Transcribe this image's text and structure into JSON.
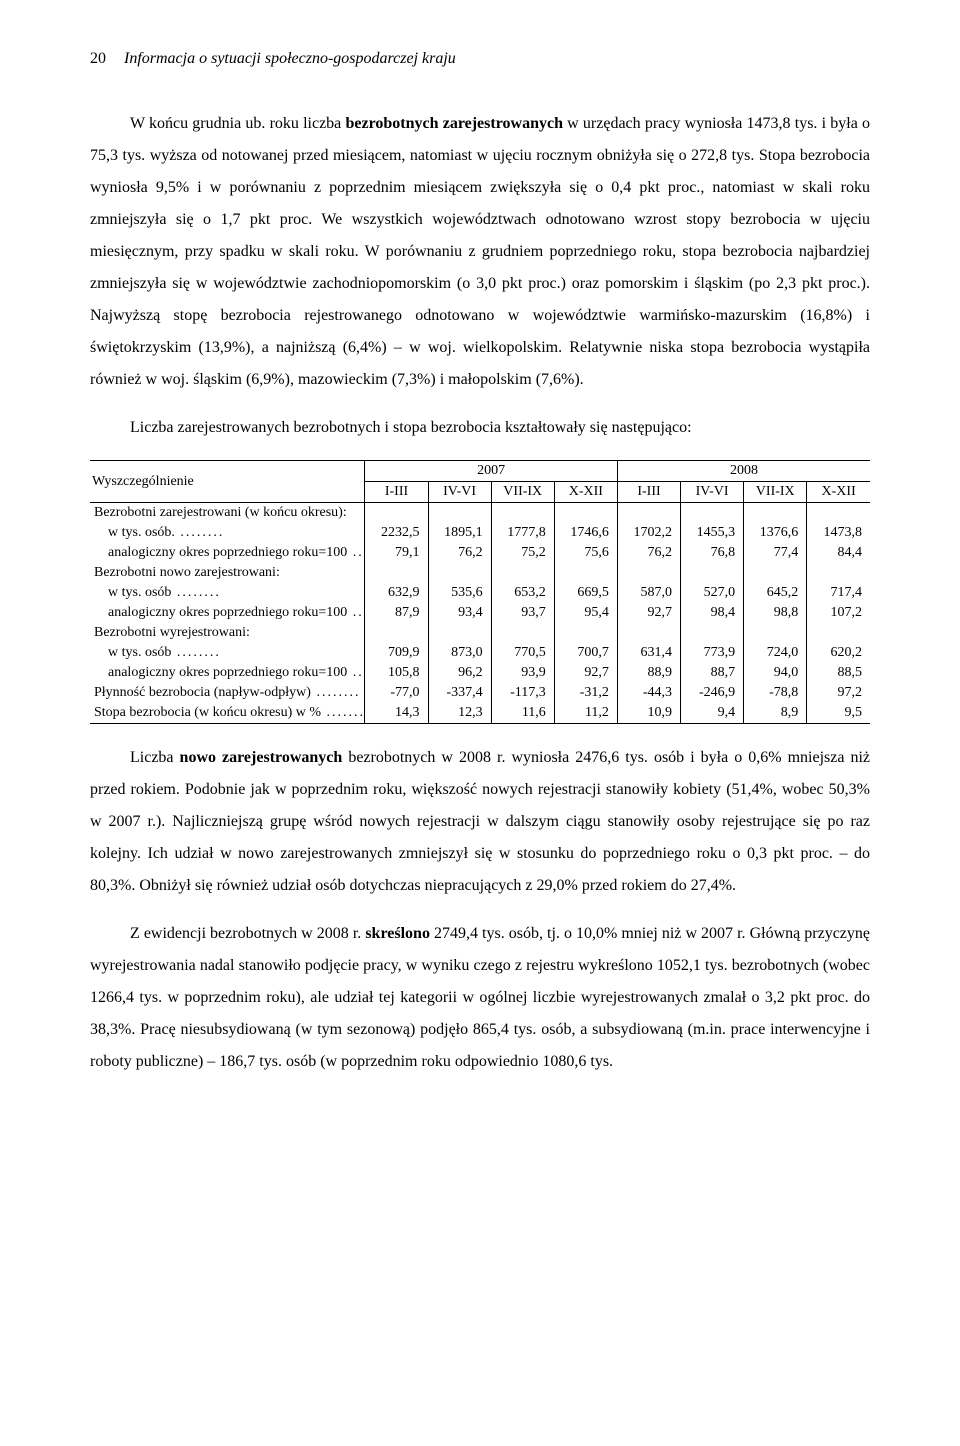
{
  "header": {
    "page_number": "20",
    "title": "Informacja o sytuacji społeczno-gospodarczej kraju"
  },
  "para1": "W końcu grudnia ub. roku liczba bezrobotnych zarejestrowanych w urzędach pracy wyniosła 1473,8 tys. i była o 75,3 tys. wyższa od notowanej przed miesiącem, natomiast w ujęciu rocznym obniżyła się o 272,8 tys. Stopa bezrobocia wyniosła 9,5% i w porównaniu z poprzednim miesiącem zwiększyła się o 0,4 pkt proc., natomiast w skali roku zmniejszyła się o 1,7 pkt proc. We wszystkich województwach odnotowano wzrost stopy bezrobocia w ujęciu miesięcznym, przy spadku w skali roku. W porównaniu z grudniem poprzedniego roku, stopa bezrobocia najbardziej zmniejszyła się w województwie zachodniopomorskim (o 3,0 pkt proc.) oraz pomorskim i śląskim (po 2,3 pkt proc.). Najwyższą stopę bezrobocia rejestrowanego odnotowano w województwie warmińsko-mazurskim (16,8%) i świętokrzyskim (13,9%), a najniższą (6,4%) – w woj. wielkopolskim. Relatywnie niska stopa bezrobocia wystąpiła również w woj. śląskim (6,9%), mazowieckim (7,3%) i małopolskim (7,6%).",
  "para2": "Liczba zarejestrowanych bezrobotnych i stopa bezrobocia kształtowały się następująco:",
  "table": {
    "col_label_header": "Wyszczególnienie",
    "year1": "2007",
    "year2": "2008",
    "quarters": [
      "I-III",
      "IV-VI",
      "VII-IX",
      "X-XII",
      "I-III",
      "IV-VI",
      "VII-IX",
      "X-XII"
    ],
    "rows": [
      {
        "label": "Bezrobotni zarejestrowani (w końcu okresu):",
        "values": [
          "",
          "",
          "",
          "",
          "",
          "",
          "",
          ""
        ],
        "group": true
      },
      {
        "label": "w tys. osób.",
        "values": [
          "2232,5",
          "1895,1",
          "1777,8",
          "1746,6",
          "1702,2",
          "1455,3",
          "1376,6",
          "1473,8"
        ],
        "sub": true
      },
      {
        "label": "analogiczny okres poprzedniego roku=100",
        "values": [
          "79,1",
          "76,2",
          "75,2",
          "75,6",
          "76,2",
          "76,8",
          "77,4",
          "84,4"
        ],
        "sub": true
      },
      {
        "label": "Bezrobotni nowo zarejestrowani:",
        "values": [
          "",
          "",
          "",
          "",
          "",
          "",
          "",
          ""
        ],
        "group": true
      },
      {
        "label": "w tys. osób",
        "values": [
          "632,9",
          "535,6",
          "653,2",
          "669,5",
          "587,0",
          "527,0",
          "645,2",
          "717,4"
        ],
        "sub": true
      },
      {
        "label": "analogiczny okres poprzedniego roku=100",
        "values": [
          "87,9",
          "93,4",
          "93,7",
          "95,4",
          "92,7",
          "98,4",
          "98,8",
          "107,2"
        ],
        "sub": true
      },
      {
        "label": "Bezrobotni wyrejestrowani:",
        "values": [
          "",
          "",
          "",
          "",
          "",
          "",
          "",
          ""
        ],
        "group": true
      },
      {
        "label": "w tys. osób",
        "values": [
          "709,9",
          "873,0",
          "770,5",
          "700,7",
          "631,4",
          "773,9",
          "724,0",
          "620,2"
        ],
        "sub": true
      },
      {
        "label": "analogiczny okres poprzedniego roku=100",
        "values": [
          "105,8",
          "96,2",
          "93,9",
          "92,7",
          "88,9",
          "88,7",
          "94,0",
          "88,5"
        ],
        "sub": true
      },
      {
        "label": "Płynność bezrobocia (napływ-odpływ)",
        "values": [
          "-77,0",
          "-337,4",
          "-117,3",
          "-31,2",
          "-44,3",
          "-246,9",
          "-78,8",
          "97,2"
        ]
      },
      {
        "label": "Stopa bezrobocia (w końcu okresu) w %",
        "values": [
          "14,3",
          "12,3",
          "11,6",
          "11,2",
          "10,9",
          "9,4",
          "8,9",
          "9,5"
        ]
      }
    ]
  },
  "para3": "Liczba nowo zarejestrowanych bezrobotnych w 2008 r. wyniosła 2476,6 tys. osób i była o 0,6% mniejsza niż przed rokiem. Podobnie jak w poprzednim roku, większość nowych rejestracji stanowiły kobiety (51,4%, wobec 50,3% w 2007 r.). Najliczniejszą grupę wśród nowych rejestracji w dalszym ciągu stanowiły osoby rejestrujące się po raz kolejny. Ich udział w nowo zarejestrowanych zmniejszył się w stosunku do poprzedniego roku o 0,3 pkt proc. – do 80,3%. Obniżył się również udział osób dotychczas niepracujących z 29,0% przed rokiem do 27,4%.",
  "para4": "Z ewidencji bezrobotnych w 2008 r. skreślono 2749,4 tys. osób, tj. o 10,0% mniej niż w 2007 r. Główną przyczynę wyrejestrowania nadal stanowiło podjęcie pracy, w wyniku czego z rejestru wykreślono 1052,1 tys. bezrobotnych (wobec 1266,4 tys. w poprzednim roku), ale udział tej kategorii w ogólnej liczbie wyrejestrowanych zmalał o 3,2 pkt proc. do 38,3%. Pracę niesubsydiowaną (w tym sezonową) podjęło 865,4 tys. osób, a subsydiowaną (m.in. prace interwencyjne i roboty publiczne) – 186,7 tys. osób (w poprzednim roku odpowiednio 1080,6 tys."
}
